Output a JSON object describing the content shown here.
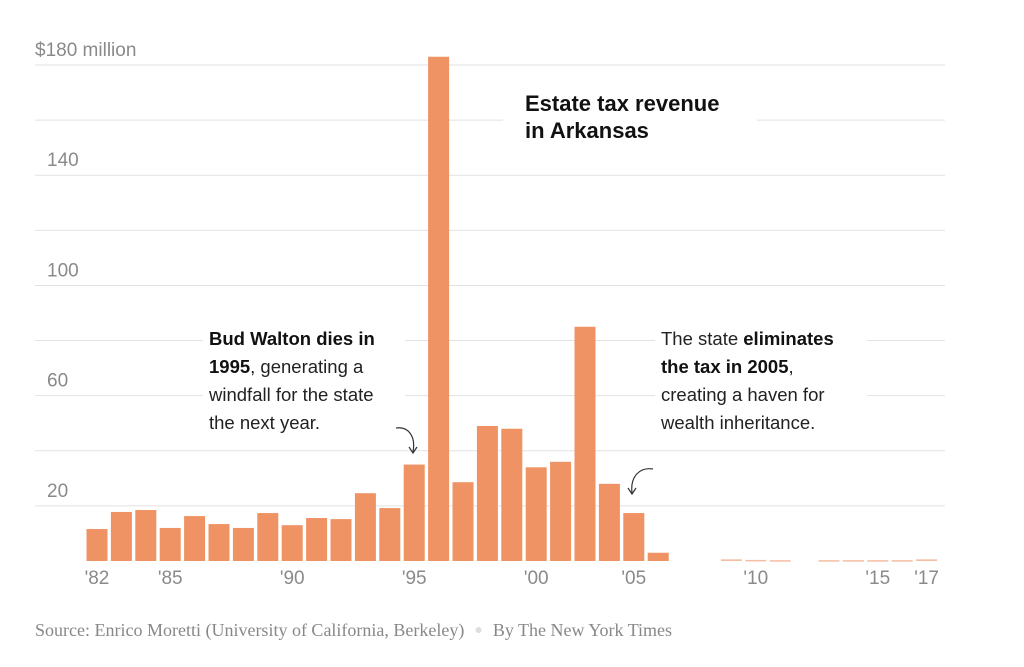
{
  "chart_data": {
    "type": "bar",
    "title": "Estate tax revenue in Arkansas",
    "ylim": [
      0,
      180
    ],
    "y_unit_label": "$180 million",
    "y_ticks": [
      20,
      40,
      60,
      80,
      100,
      120,
      140,
      160,
      180
    ],
    "y_tick_labels": [
      {
        "value": 20,
        "label": "20"
      },
      {
        "value": 60,
        "label": "60"
      },
      {
        "value": 100,
        "label": "100"
      },
      {
        "value": 140,
        "label": "140"
      },
      {
        "value": 180,
        "label": "$180 million"
      }
    ],
    "grid": true,
    "bar_color": "#ef9264",
    "categories": [
      "'82",
      "",
      "",
      "'85",
      "",
      "",
      "",
      "",
      "'90",
      "",
      "",
      "",
      "",
      "'95",
      "",
      "",
      "",
      "",
      "'00",
      "",
      "",
      "",
      "'05",
      "",
      "",
      "",
      "",
      "'10",
      "",
      "",
      "",
      "",
      "'15",
      "",
      "'17"
    ],
    "values": [
      11.6,
      17.8,
      18.5,
      12,
      16.3,
      13.4,
      12,
      17.4,
      13,
      15.6,
      15.2,
      24.6,
      19.2,
      35,
      183,
      28.6,
      49,
      48,
      34,
      36,
      85,
      28,
      17.4,
      3,
      0,
      0,
      0.6,
      0.4,
      0.3,
      0,
      0.3,
      0.3,
      0.3,
      0.3,
      0.6
    ]
  },
  "annotations": {
    "bud_walton": {
      "bold": "Bud Walton dies in 1995",
      "rest": ", generating a windfall for the state the next year."
    },
    "eliminates": {
      "pre": "The state ",
      "bold": "eliminates the tax in 2005",
      "rest": ", creating a haven for wealth inheritance."
    }
  },
  "footer": {
    "source": "Source: Enrico Moretti (University of California, Berkeley)",
    "byline": "By The New York Times"
  }
}
